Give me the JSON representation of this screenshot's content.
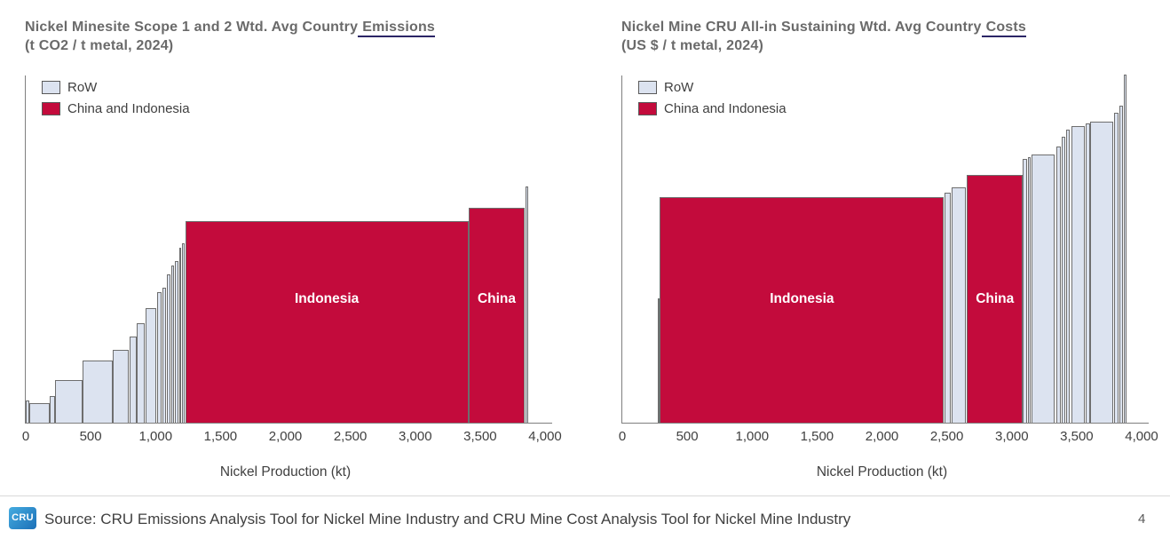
{
  "colors": {
    "red_fill": "#C30B3C",
    "row_fill": "#DCE3F0",
    "bar_border": "#6E6E6E",
    "axis_gray": "#7F7F7F",
    "title_gray": "#6A6A6A",
    "underline_navy": "#2B2566",
    "logo_blue_top": "#45ACE0",
    "logo_blue_bottom": "#1B6FB7"
  },
  "footer": {
    "logo_text": "CRU",
    "source_text": "Source: CRU Emissions Analysis Tool for Nickel Mine Industry and CRU Mine Cost Analysis Tool for Nickel Mine Industry",
    "page_number": "4"
  },
  "chart_data": [
    {
      "type": "bar",
      "variant": "cost-curve",
      "title_line1": "Nickel Minesite Scope 1 and 2 Wtd. Avg Country",
      "title_highlight": "Emissions",
      "title_line2": "(t CO2 / t metal, 2024)",
      "xlabel": "Nickel Production (kt)",
      "xlim": [
        0,
        4000
      ],
      "x_ticks": [
        "0",
        "500",
        "1,000",
        "1,500",
        "2,000",
        "2,500",
        "3,000",
        "3,500",
        "4,000"
      ],
      "tick_values": [
        0,
        500,
        1000,
        1500,
        2000,
        2500,
        3000,
        3500,
        4000
      ],
      "legend": [
        "RoW",
        "China and Indonesia"
      ],
      "legend_position": "top-left",
      "grid": false,
      "height_units": "relative fraction of plot height (no y-axis scale shown)",
      "bars": [
        {
          "series": "RoW",
          "x0": 0,
          "x1": 28,
          "h": 0.064
        },
        {
          "series": "RoW",
          "x0": 28,
          "x1": 185,
          "h": 0.056
        },
        {
          "series": "RoW",
          "x0": 185,
          "x1": 226,
          "h": 0.077
        },
        {
          "series": "RoW",
          "x0": 226,
          "x1": 440,
          "h": 0.122
        },
        {
          "series": "RoW",
          "x0": 440,
          "x1": 672,
          "h": 0.179
        },
        {
          "series": "RoW",
          "x0": 672,
          "x1": 793,
          "h": 0.209
        },
        {
          "series": "RoW",
          "x0": 800,
          "x1": 852,
          "h": 0.247
        },
        {
          "series": "RoW",
          "x0": 857,
          "x1": 914,
          "h": 0.286
        },
        {
          "series": "RoW",
          "x0": 920,
          "x1": 1005,
          "h": 0.328
        },
        {
          "series": "RoW",
          "x0": 1012,
          "x1": 1044,
          "h": 0.375
        },
        {
          "series": "RoW",
          "x0": 1050,
          "x1": 1078,
          "h": 0.388
        },
        {
          "series": "RoW",
          "x0": 1085,
          "x1": 1112,
          "h": 0.426
        },
        {
          "series": "RoW",
          "x0": 1119,
          "x1": 1141,
          "h": 0.452
        },
        {
          "series": "RoW",
          "x0": 1148,
          "x1": 1176,
          "h": 0.464
        },
        {
          "series": "RoW",
          "x0": 1183,
          "x1": 1198,
          "h": 0.503
        },
        {
          "series": "RoW",
          "x0": 1203,
          "x1": 1222,
          "h": 0.515
        },
        {
          "series": "China and Indonesia",
          "x0": 1228,
          "x1": 3410,
          "h": 0.579,
          "label": "Indonesia"
        },
        {
          "series": "China and Indonesia",
          "x0": 3412,
          "x1": 3843,
          "h": 0.617,
          "label": "China"
        },
        {
          "series": "RoW",
          "x0": 3846,
          "x1": 3868,
          "h": 0.679
        }
      ]
    },
    {
      "type": "bar",
      "variant": "cost-curve",
      "title_line1": "Nickel Mine CRU All-in Sustaining Wtd. Avg Country",
      "title_highlight": "Costs",
      "title_line2": "(US $ / t metal, 2024)",
      "xlabel": "Nickel Production (kt)",
      "xlim": [
        0,
        4000
      ],
      "x_ticks": [
        "0",
        "500",
        "1,000",
        "1,500",
        "2,000",
        "2,500",
        "3,000",
        "3,500",
        "4,000"
      ],
      "tick_values": [
        0,
        500,
        1000,
        1500,
        2000,
        2500,
        3000,
        3500,
        4000
      ],
      "legend": [
        "RoW",
        "China and Indonesia"
      ],
      "legend_position": "top-left",
      "grid": false,
      "height_units": "relative fraction of plot height (no y-axis scale shown)",
      "bars": [
        {
          "series": "RoW",
          "x0": 276,
          "x1": 290,
          "h": 0.357
        },
        {
          "series": "China and Indonesia",
          "x0": 290,
          "x1": 2478,
          "h": 0.648,
          "label": "Indonesia"
        },
        {
          "series": "RoW",
          "x0": 2481,
          "x1": 2531,
          "h": 0.661
        },
        {
          "series": "RoW",
          "x0": 2536,
          "x1": 2645,
          "h": 0.677
        },
        {
          "series": "China and Indonesia",
          "x0": 2655,
          "x1": 3085,
          "h": 0.712,
          "label": "China"
        },
        {
          "series": "RoW",
          "x0": 3086,
          "x1": 3118,
          "h": 0.758
        },
        {
          "series": "RoW",
          "x0": 3122,
          "x1": 3148,
          "h": 0.762
        },
        {
          "series": "RoW",
          "x0": 3152,
          "x1": 3332,
          "h": 0.77
        },
        {
          "series": "RoW",
          "x0": 3342,
          "x1": 3378,
          "h": 0.793
        },
        {
          "series": "RoW",
          "x0": 3382,
          "x1": 3412,
          "h": 0.821
        },
        {
          "series": "RoW",
          "x0": 3417,
          "x1": 3450,
          "h": 0.842
        },
        {
          "series": "RoW",
          "x0": 3457,
          "x1": 3560,
          "h": 0.853
        },
        {
          "series": "RoW",
          "x0": 3570,
          "x1": 3601,
          "h": 0.86
        },
        {
          "series": "RoW",
          "x0": 3606,
          "x1": 3783,
          "h": 0.864
        },
        {
          "series": "RoW",
          "x0": 3789,
          "x1": 3822,
          "h": 0.89
        },
        {
          "series": "RoW",
          "x0": 3828,
          "x1": 3858,
          "h": 0.912
        },
        {
          "series": "RoW",
          "x0": 3866,
          "x1": 3882,
          "h": 1.0
        }
      ]
    }
  ]
}
